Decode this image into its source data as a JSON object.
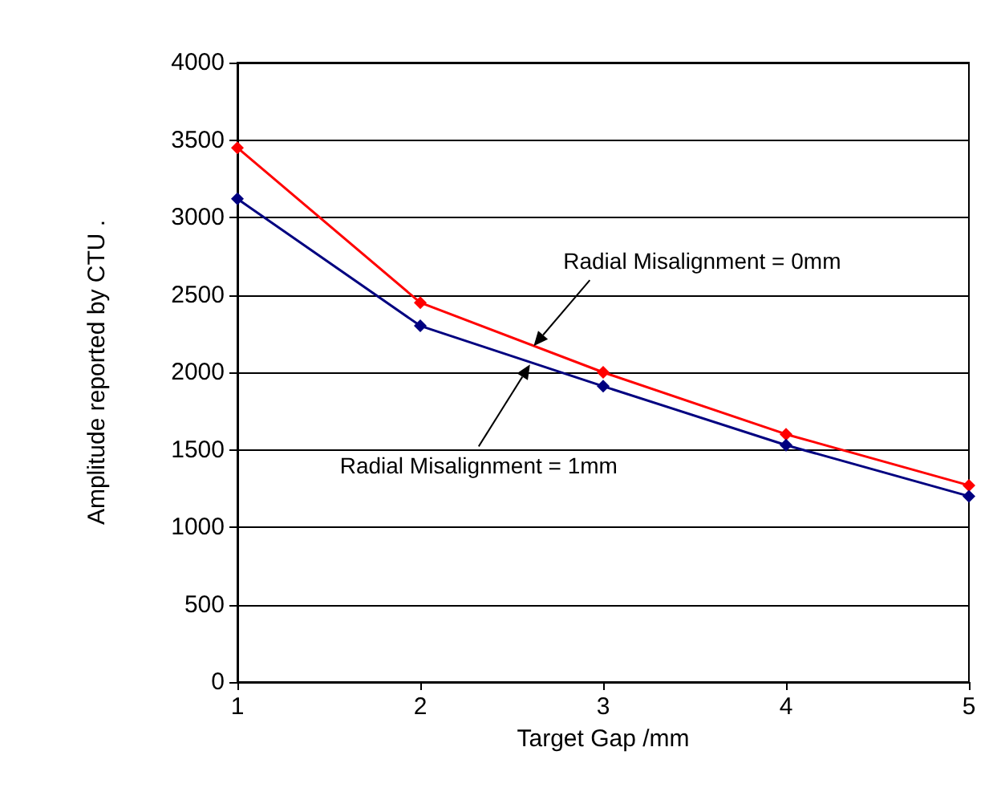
{
  "chart_data": {
    "type": "line",
    "xlabel": "Target Gap /mm",
    "ylabel": "Amplitude reported by CTU .",
    "x": [
      1,
      2,
      3,
      4,
      5
    ],
    "series": [
      {
        "color": "#ff0000",
        "values": [
          3450,
          2450,
          2000,
          1600,
          1270
        ]
      },
      {
        "color": "#000080",
        "values": [
          3120,
          2300,
          1910,
          1530,
          1200
        ]
      }
    ],
    "xlim": [
      1,
      5
    ],
    "xticks": [
      1,
      2,
      3,
      4,
      5
    ],
    "ylim": [
      0,
      4000
    ],
    "yticks": [
      0,
      500,
      1000,
      1500,
      2000,
      2500,
      3000,
      3500,
      4000
    ],
    "grid": "y",
    "marker": "diamond",
    "line_style": "solid",
    "annotations": [
      {
        "text": "Radial Misalignment = 0mm",
        "x": 2.62,
        "y": 2170
      },
      {
        "text": "Radial Misalignment = 1mm",
        "x": 2.6,
        "y": 2050
      }
    ]
  }
}
